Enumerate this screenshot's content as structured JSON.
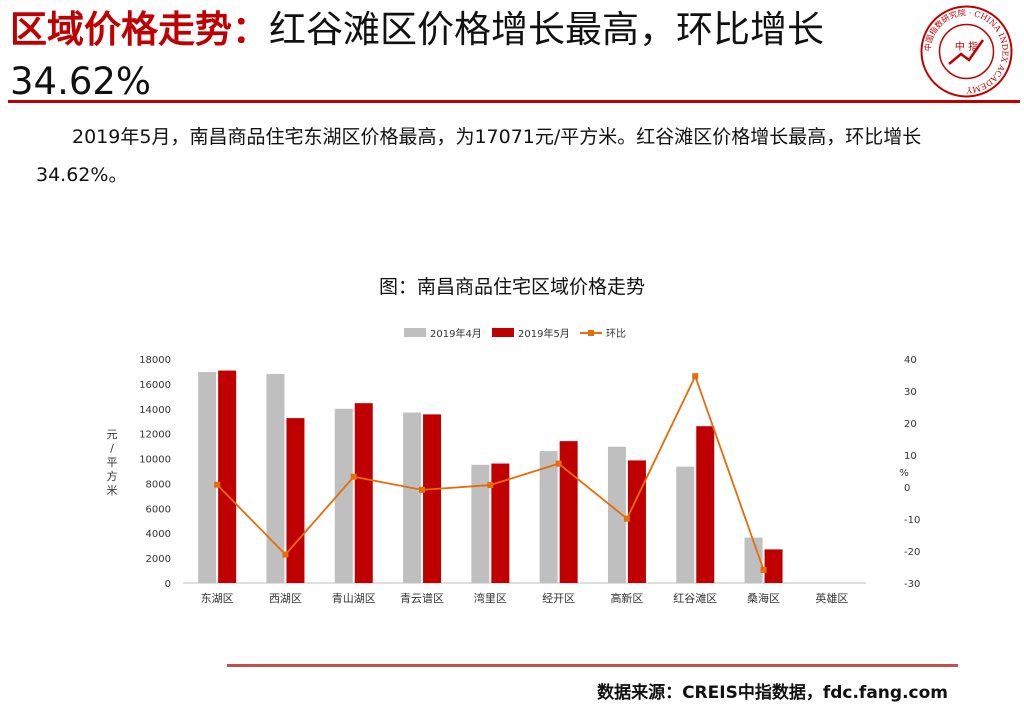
{
  "header": {
    "title_prefix": "区域价格走势：",
    "title_rest": "红谷滩区价格增长最高，环比增长34.62%",
    "logo_center_text": "中 指",
    "logo_ring_text": "中国指数研究院 · CHINA INDEX ACADEMY"
  },
  "description": "2019年5月，南昌商品住宅东湖区价格最高，为17071元/平方米。红谷滩区价格增长最高，环比增长34.62%。",
  "chart_title": "图：南昌商品住宅区域价格走势",
  "source": "数据来源：CREIS中指数据，fdc.fang.com",
  "colors": {
    "accent": "#c00000",
    "april": "#bfbfbf",
    "may": "#c00000",
    "mom": "#e46c0a",
    "rule": "#c0504d"
  },
  "chart_data": {
    "type": "bar",
    "categories": [
      "东湖区",
      "西湖区",
      "青山湖区",
      "青云谱区",
      "湾里区",
      "经开区",
      "高新区",
      "红谷滩区",
      "桑海区",
      "英雄区"
    ],
    "series": [
      {
        "name": "2019年4月",
        "type": "bar",
        "axis": "left",
        "values": [
          16950,
          16800,
          14000,
          13700,
          9500,
          10600,
          10950,
          9350,
          3650,
          null
        ]
      },
      {
        "name": "2019年5月",
        "type": "bar",
        "axis": "left",
        "values": [
          17071,
          13250,
          14450,
          13550,
          9600,
          11400,
          9850,
          12600,
          2700,
          null
        ]
      },
      {
        "name": "环比",
        "type": "line",
        "axis": "right",
        "values": [
          0.7,
          -21.1,
          3.2,
          -0.9,
          0.6,
          7.3,
          -9.9,
          34.62,
          -25.9,
          null
        ]
      }
    ],
    "y_left": {
      "label": "元/平方米",
      "min": 0,
      "max": 18000,
      "ticks": [
        0,
        2000,
        4000,
        6000,
        8000,
        10000,
        12000,
        14000,
        16000,
        18000
      ]
    },
    "y_right": {
      "label": "%",
      "min": -30,
      "max": 40,
      "ticks": [
        -30,
        -20,
        -10,
        0,
        10,
        20,
        30,
        40
      ]
    },
    "legend_position": "top",
    "grid": false
  }
}
